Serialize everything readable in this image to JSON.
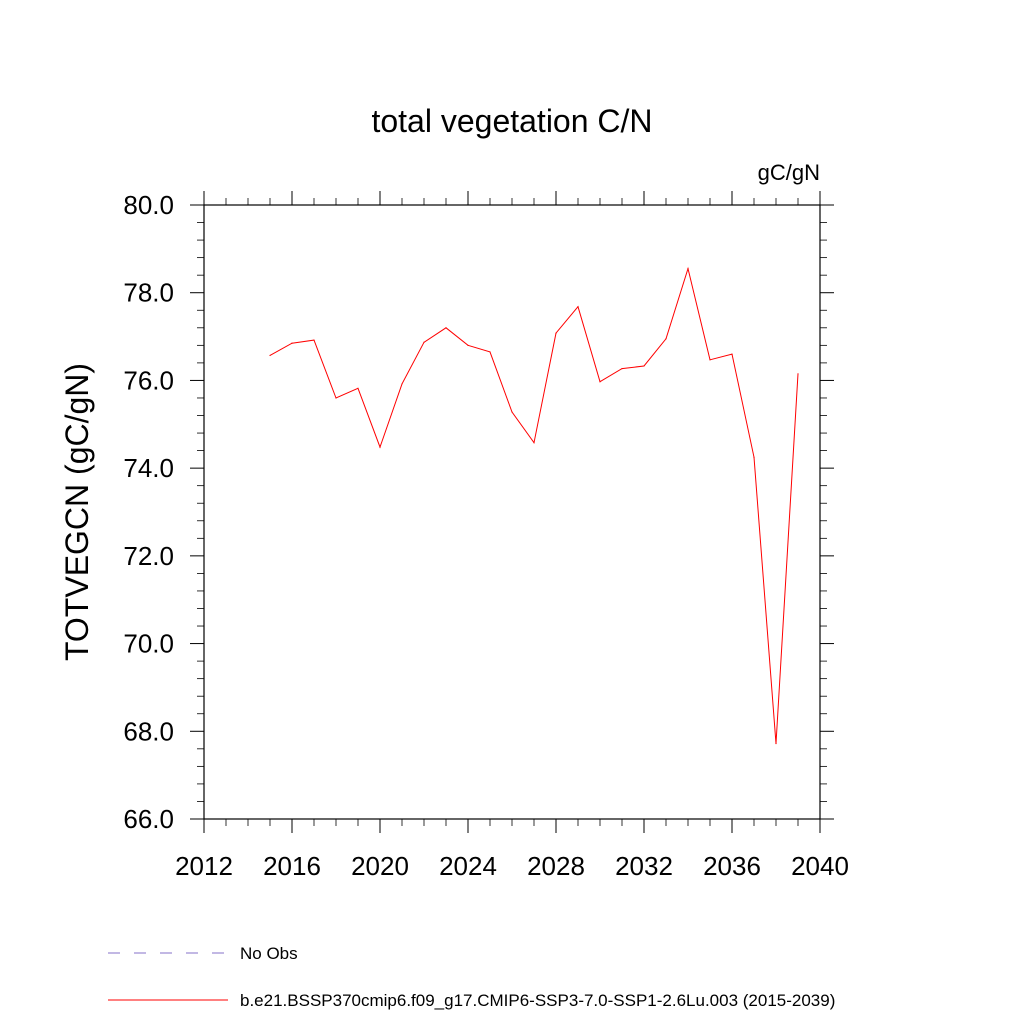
{
  "chart_data": {
    "type": "line",
    "title": "total vegetation C/N",
    "units_label": "gC/gN",
    "ylabel": "TOTVEGCN  (gC/gN)",
    "xlabel": "",
    "xlim": [
      2012,
      2040
    ],
    "ylim": [
      66,
      80
    ],
    "x_ticks": [
      "2012",
      "2016",
      "2020",
      "2024",
      "2028",
      "2032",
      "2036",
      "2040"
    ],
    "y_ticks": [
      "66.0",
      "68.0",
      "70.0",
      "72.0",
      "74.0",
      "76.0",
      "78.0",
      "80.0"
    ],
    "series": [
      {
        "name": "b.e21.BSSP370cmip6.f09_g17.CMIP6-SSP3-7.0-SSP1-2.6Lu.003 (2015-2039)",
        "color": "#ff0000",
        "style": "solid",
        "x": [
          2015,
          2016,
          2017,
          2018,
          2019,
          2020,
          2021,
          2022,
          2023,
          2024,
          2025,
          2026,
          2027,
          2028,
          2029,
          2030,
          2031,
          2032,
          2033,
          2034,
          2035,
          2036,
          2037,
          2038,
          2039
        ],
        "values": [
          76.57,
          76.85,
          76.92,
          75.6,
          75.82,
          74.48,
          75.92,
          76.87,
          77.2,
          76.8,
          76.65,
          75.28,
          74.58,
          77.08,
          77.68,
          75.97,
          76.27,
          76.33,
          76.95,
          78.55,
          76.47,
          76.6,
          74.25,
          67.72,
          76.15
        ]
      }
    ],
    "legend": [
      {
        "label": "No Obs",
        "color": "#8470c8",
        "style": "dashed"
      },
      {
        "label": "b.e21.BSSP370cmip6.f09_g17.CMIP6-SSP3-7.0-SSP1-2.6Lu.003 (2015-2039)",
        "color": "#ff0000",
        "style": "solid"
      }
    ],
    "legend_position": "bottom-left",
    "grid": false
  }
}
